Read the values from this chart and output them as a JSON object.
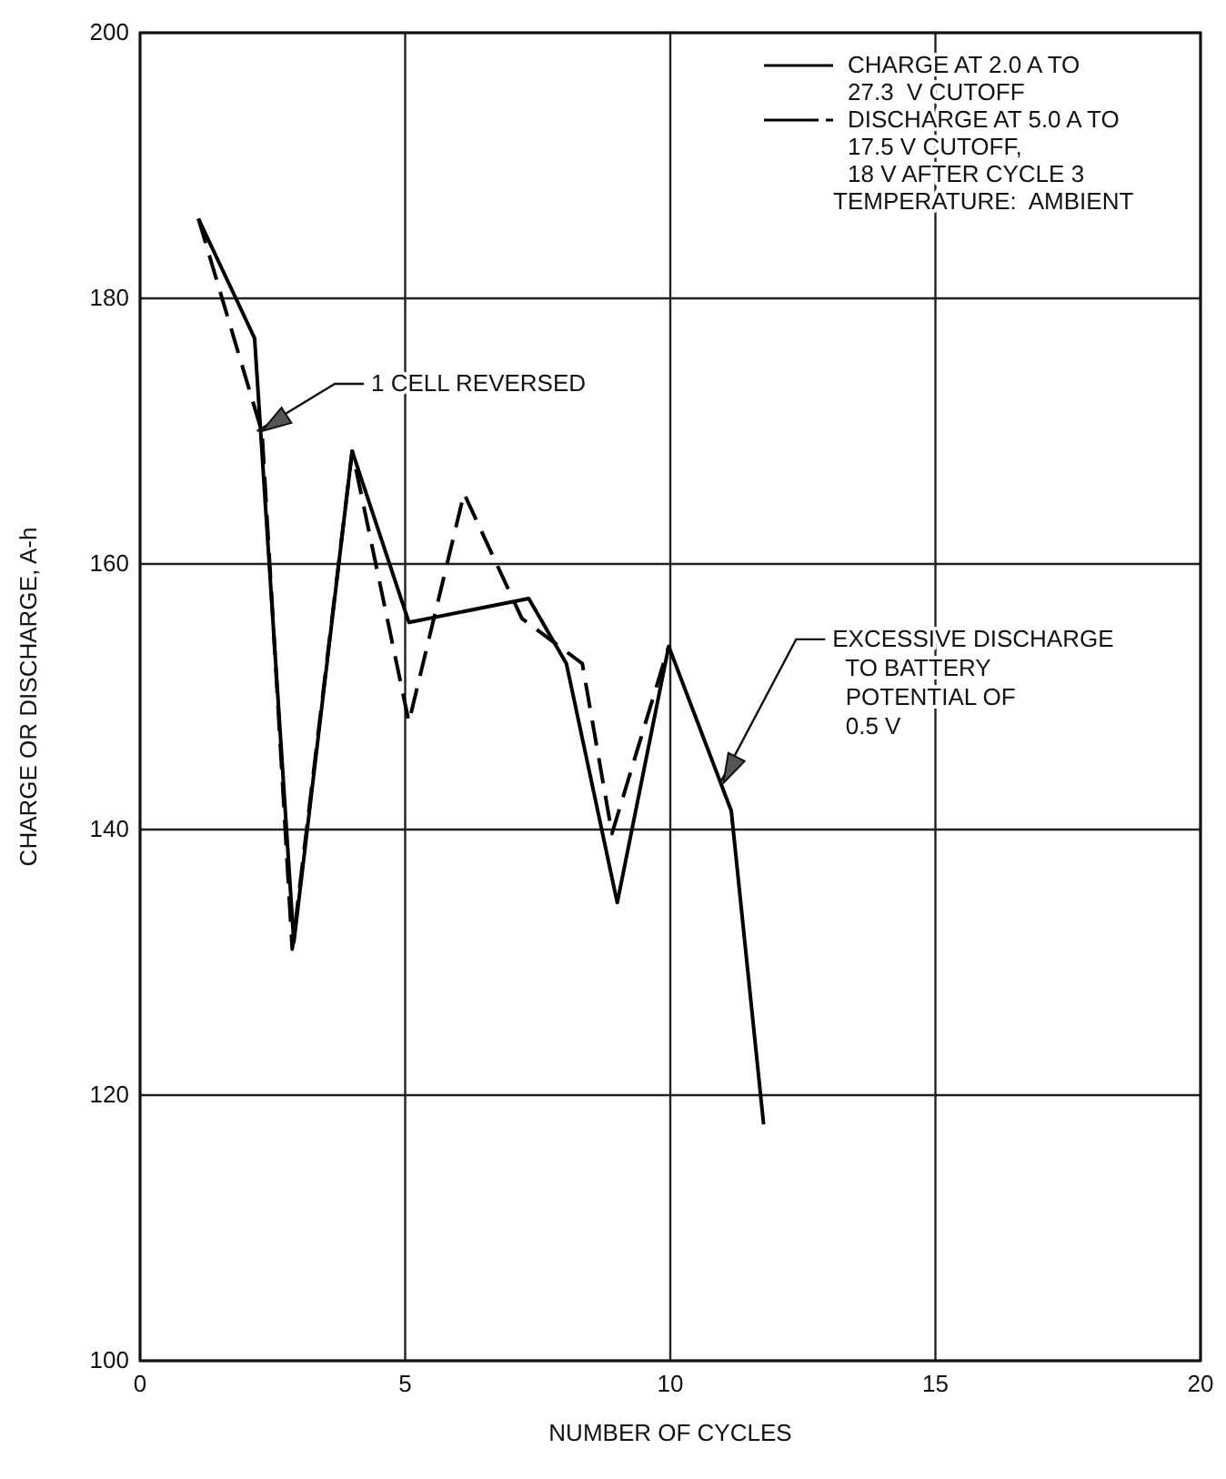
{
  "chart_data": {
    "type": "line",
    "xlabel": "NUMBER OF CYCLES",
    "ylabel": "CHARGE OR DISCHARGE, A-h",
    "xlim": [
      0,
      20
    ],
    "xticks": [
      0,
      5,
      10,
      15,
      20
    ],
    "ylim": [
      100,
      200
    ],
    "yticks": [
      100,
      120,
      140,
      160,
      180,
      200
    ],
    "grid": true,
    "legend": "top right",
    "marker": "none",
    "series": [
      {
        "name": "CHARGE AT 2.0 A TO\n27.3  V CUTOFF",
        "color": "#000000",
        "line_style": "solid",
        "x": [
          1.1,
          2.16,
          2.9,
          4.0,
          5.07,
          7.33,
          8.04,
          9.0,
          9.97,
          11.15,
          11.76
        ],
        "values": [
          186,
          177,
          131.5,
          168.5,
          155.6,
          157.4,
          152.5,
          134.5,
          153.8,
          141.4,
          117.8
        ]
      },
      {
        "name": "DISCHARGE AT 5.0 A TO\n17.5 V CUTOFF,\n18 V AFTER CYCLE 3",
        "color": "#000000",
        "line_style": "dashed",
        "x": [
          1.1,
          2.3,
          2.87,
          4.0,
          5.07,
          6.11,
          7.2,
          8.34,
          8.9,
          9.97
        ],
        "values": [
          186,
          169.9,
          131,
          168.5,
          148.1,
          165.3,
          155.9,
          152.5,
          139.7,
          153.8
        ]
      }
    ],
    "annotations": [
      "TEMPERATURE:  AMBIENT",
      {
        "text": "1 CELL REVERSED",
        "x": 2.3,
        "y": 170
      },
      {
        "text": "EXCESSIVE DISCHARGE\n  TO BATTERY\n  POTENTIAL OF\n  0.5 V",
        "x": 11.0,
        "y": 143.5
      }
    ]
  }
}
